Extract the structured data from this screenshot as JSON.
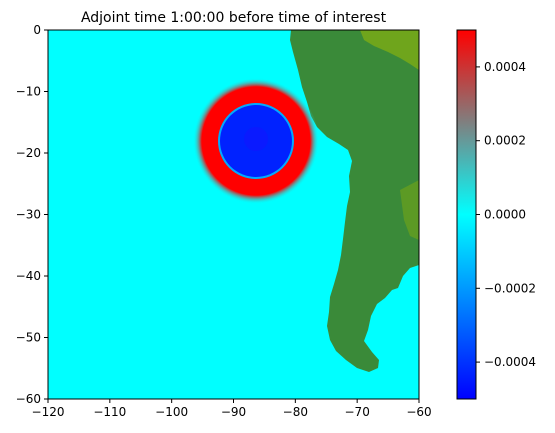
{
  "chart_data": {
    "type": "heatmap",
    "title": "Adjoint time 1:00:00 before time of interest",
    "xlim": [
      -120,
      -60
    ],
    "ylim": [
      -60,
      0
    ],
    "x_ticks": [
      "−120",
      "−110",
      "−100",
      "−90",
      "−80",
      "−70",
      "−60"
    ],
    "x_tick_values": [
      -120,
      -110,
      -100,
      -90,
      -80,
      -70,
      -60
    ],
    "y_ticks": [
      "0",
      "−10",
      "−20",
      "−30",
      "−40",
      "−50",
      "−60"
    ],
    "y_tick_values": [
      0,
      -10,
      -20,
      -30,
      -40,
      -50,
      -60
    ],
    "colorbar": {
      "range": [
        -0.0005,
        0.0005
      ],
      "tick_values": [
        0.0004,
        0.0002,
        0,
        -0.0002,
        -0.0004
      ],
      "tick_labels": [
        "0.0004",
        "0.0002",
        "0.0000",
        "−0.0002",
        "−0.0004"
      ],
      "colors": [
        "#0000ff",
        "#00ffff",
        "#ff0000"
      ]
    },
    "background_value": 0.0,
    "background_color": "#00ffff",
    "feature": {
      "center": [
        -86.5,
        -18
      ],
      "positive_ring_radius_deg": 10,
      "negative_core_radius_deg": 6,
      "ring_color": "#ff0000",
      "core_color": "#0022ff",
      "core_edge_color": "#00aaff"
    },
    "land": {
      "color": "#3a8a39",
      "highland_color": "#6fa51c"
    },
    "grid": false
  }
}
